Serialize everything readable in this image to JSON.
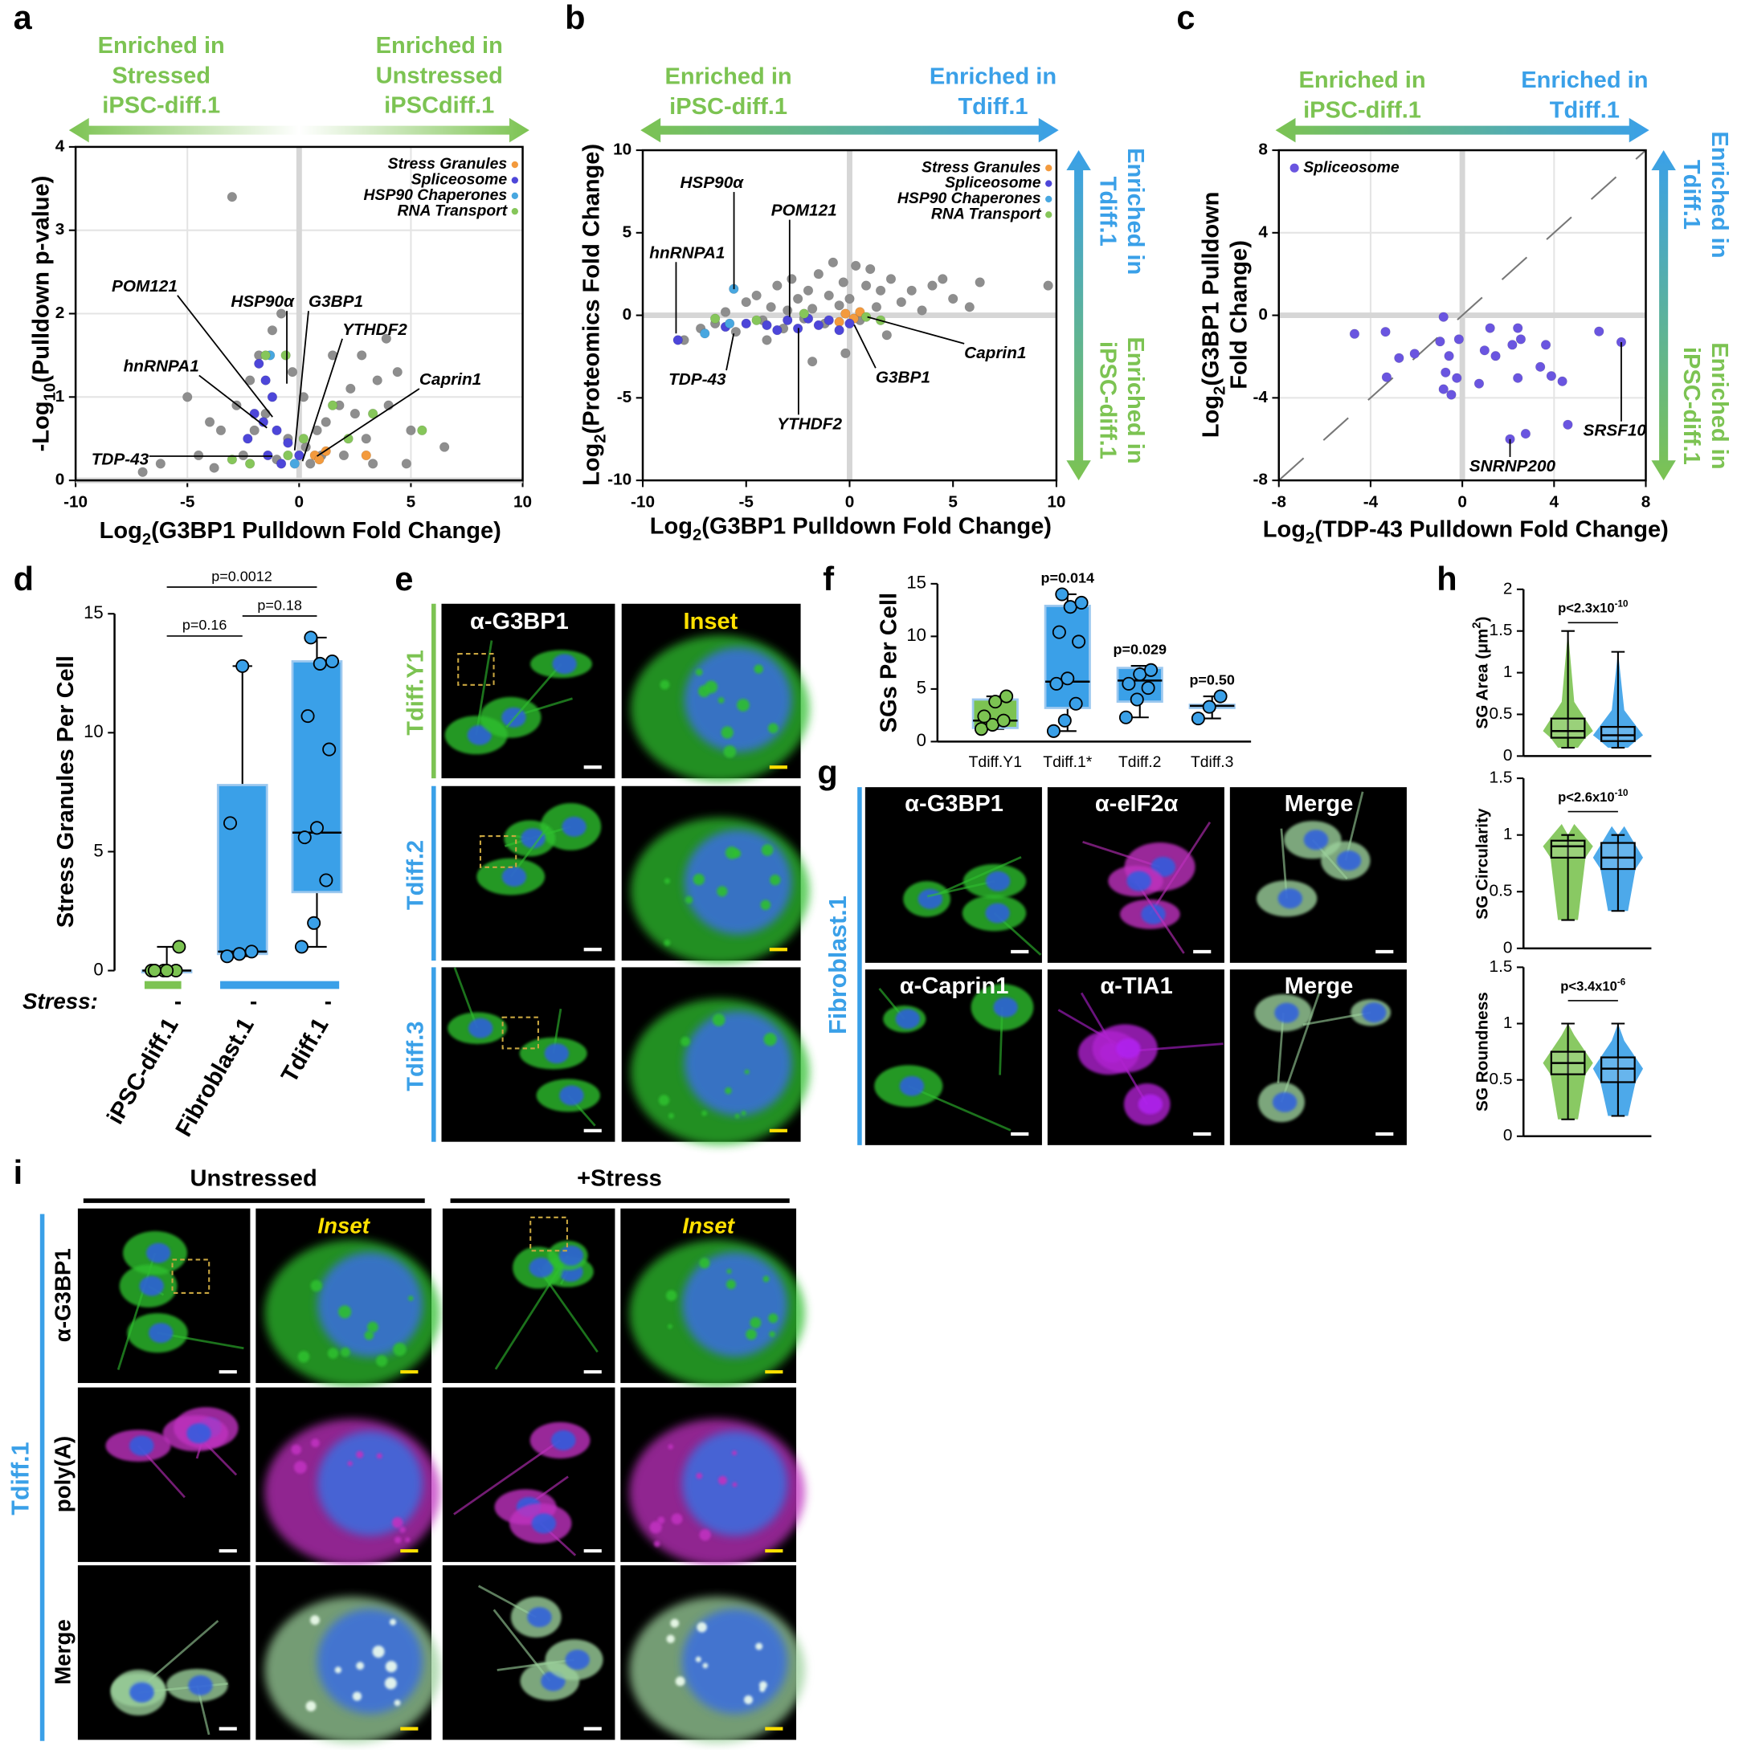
{
  "chart_data": [
    {
      "panel": "a",
      "type": "scatter",
      "xlabel": [
        [
          "Log",
          "2",
          "(G3BP1 Pulldown Fold Change)"
        ]
      ],
      "ylabel": [
        [
          "-Log",
          "10",
          "(Pulldown p-value)"
        ]
      ],
      "xlim": [
        -10,
        10
      ],
      "ylim": [
        0,
        4
      ],
      "xticks": [
        -10,
        -5,
        0,
        5,
        10
      ],
      "yticks": [
        0,
        1,
        2,
        3,
        4
      ],
      "grid": true,
      "zero_lines": true,
      "legend": "upper right",
      "arrow_text": {
        "left": [
          "Enriched in",
          "Stressed",
          "iPSC-diff.1"
        ],
        "right": [
          "Enriched in",
          "Unstressed",
          "iPSCdiff.1"
        ]
      },
      "arrow_colors": [
        "#7cc352",
        "#ffffff",
        "#7cc352"
      ],
      "series": [
        {
          "color": "#8e8e8e",
          "x": [
            -3,
            -5,
            -4,
            -3.5,
            -2.8,
            -2.2,
            -1.8,
            -1.2,
            -0.8,
            -1.5,
            -0.5,
            0.3,
            0.8,
            1.2,
            1.8,
            2.3,
            2.8,
            3.5,
            4,
            4.4,
            3.9,
            -6.2,
            -7,
            -4.5,
            -2.5,
            -1,
            0.5,
            2,
            3,
            5,
            6.5,
            -3.8,
            1.5,
            2.5,
            -2,
            0.2,
            -0.3,
            1,
            4.8,
            3.3
          ],
          "y": [
            3.4,
            1.0,
            0.7,
            0.6,
            0.9,
            1.2,
            1.5,
            1.8,
            2.0,
            0.8,
            0.5,
            0.4,
            0.6,
            0.7,
            0.9,
            1.1,
            1.5,
            1.2,
            0.9,
            1.3,
            1.7,
            0.2,
            0.1,
            0.3,
            0.3,
            0.25,
            0.2,
            0.3,
            0.5,
            0.6,
            0.4,
            0.15,
            1.5,
            0.8,
            0.6,
            1.0,
            1.3,
            0.3,
            0.2,
            0.2
          ]
        },
        {
          "name": "Stress Granules",
          "color": "#f39a3d",
          "x": [
            0.7,
            1.2,
            0.9,
            3
          ],
          "y": [
            0.3,
            0.35,
            0.25,
            0.3
          ]
        },
        {
          "name": "Spliceosome",
          "color": "#4d46d9",
          "x": [
            -1.8,
            -1.5,
            -1.2,
            -2,
            -1,
            -0.5,
            0,
            -1.4,
            -2.3,
            -0.8,
            -1.6
          ],
          "y": [
            1.4,
            1.2,
            1.0,
            0.8,
            0.6,
            0.45,
            0.3,
            0.3,
            0.5,
            0.2,
            0.7
          ]
        },
        {
          "name": "HSP90 Chaperones",
          "color": "#48a7e0",
          "x": [
            -1.3,
            -0.2
          ],
          "y": [
            1.5,
            0.2
          ]
        },
        {
          "name": "RNA Transport",
          "color": "#86c65a",
          "x": [
            -1.5,
            -2.2,
            -0.5,
            1.5,
            2.2,
            3.3,
            5.5,
            -3,
            0.2,
            -0.6
          ],
          "y": [
            1.5,
            0.2,
            0.3,
            0.9,
            0.5,
            0.8,
            0.6,
            0.25,
            0.5,
            1.5
          ]
        }
      ],
      "annotations": [
        {
          "text": "POM121",
          "x": -1.19,
          "y": 0.76
        },
        {
          "text": "hnRNPA1",
          "x": -1.44,
          "y": 0.63
        },
        {
          "text": "HSP90α",
          "x": -0.55,
          "y": 1.16
        },
        {
          "text": "G3BP1",
          "x": -0.2,
          "y": 0.36
        },
        {
          "text": "YTHDF2",
          "x": 0.15,
          "y": 0.23
        },
        {
          "text": "Caprin1",
          "x": 0.8,
          "y": 0.29
        },
        {
          "text": "TDP-43",
          "x": -1.19,
          "y": 0.29
        }
      ]
    },
    {
      "panel": "b",
      "type": "scatter",
      "xlabel": [
        [
          "Log",
          "2",
          "(G3BP1 Pulldown Fold Change)"
        ]
      ],
      "ylabel": [
        [
          "Log",
          "2",
          "(Proteomics Fold Change)"
        ]
      ],
      "xlim": [
        -10,
        10
      ],
      "ylim": [
        -10,
        10
      ],
      "xticks": [
        -10,
        -5,
        0,
        5,
        10
      ],
      "yticks": [
        -10,
        -5,
        0,
        5,
        10
      ],
      "grid": false,
      "zero_lines": true,
      "legend": "upper right",
      "arrow_text": {
        "left": [
          "Enriched in",
          "iPSC-diff.1"
        ],
        "right": [
          "Enriched in",
          "Tdiff.1"
        ]
      },
      "arrow_colors": [
        "#7cc352",
        "#3aa0e8"
      ],
      "varrow_text": {
        "top": [
          "Enriched in",
          "Tdiff.1"
        ],
        "bottom": [
          "Enriched in",
          "iPSC-diff.1"
        ]
      },
      "varrow_colors": [
        "#3aa0e8",
        "#7cc352"
      ],
      "series": [
        {
          "color": "#8e8e8e",
          "x": [
            -8,
            -7.2,
            -6.5,
            -6,
            -5.5,
            -5,
            -4.5,
            -4.2,
            -3.8,
            -3.5,
            -3.2,
            -3,
            -2.8,
            -2.5,
            -2.2,
            -2,
            -1.8,
            -1.5,
            -1.2,
            -1,
            -0.8,
            -0.5,
            -0.3,
            0,
            0.3,
            0.5,
            0.8,
            1,
            1.3,
            1.5,
            2,
            2.5,
            3,
            3.5,
            4,
            4.5,
            5,
            5.8,
            6.3,
            9.6,
            -1.8,
            -0.2,
            1.8,
            -4
          ],
          "y": [
            -1.5,
            -0.8,
            -0.5,
            0.2,
            -1,
            0.8,
            1.2,
            -0.3,
            0.5,
            1.8,
            -0.8,
            0.3,
            2.2,
            1.0,
            -0.2,
            1.5,
            0.4,
            2.5,
            -0.5,
            1.2,
            3.2,
            0.6,
            2.0,
            1.0,
            3.0,
            -0.3,
            1.8,
            2.8,
            0.5,
            1.5,
            2.2,
            0.8,
            1.5,
            0.3,
            1.8,
            2.2,
            1.0,
            0.5,
            2.0,
            1.8,
            -2.8,
            -2.3,
            -1.2,
            -1.5
          ]
        },
        {
          "name": "Stress Granules",
          "color": "#f39a3d",
          "x": [
            -0.2,
            0.2,
            -0.5,
            0.5
          ],
          "y": [
            0.1,
            -0.2,
            -0.4,
            0.2
          ]
        },
        {
          "name": "Spliceosome",
          "color": "#4d46d9",
          "x": [
            -8.3,
            -6,
            -5,
            -4,
            -3,
            -2.5,
            -2,
            -1.5,
            -1,
            -0.5,
            0,
            -3.5
          ],
          "y": [
            -1.5,
            -0.7,
            -0.5,
            -0.6,
            -0.3,
            -0.8,
            -0.2,
            -0.6,
            -0.3,
            -0.9,
            -0.5,
            -0.9
          ]
        },
        {
          "name": "HSP90 Chaperones",
          "color": "#48a7e0",
          "x": [
            -5.6,
            -7,
            -5.8
          ],
          "y": [
            1.6,
            -1.1,
            -0.5
          ]
        },
        {
          "name": "RNA Transport",
          "color": "#86c65a",
          "x": [
            -6.5,
            -4.5,
            0.8,
            1.5,
            -2.2
          ],
          "y": [
            -0.2,
            -0.3,
            -0.1,
            -0.3,
            0.1
          ]
        }
      ],
      "annotations": [
        {
          "text": "hnRNPA1",
          "x": -8.39,
          "y": -1.1
        },
        {
          "text": "HSP90α",
          "x": -5.59,
          "y": 1.58
        },
        {
          "text": "POM121",
          "x": -2.9,
          "y": -0.1
        },
        {
          "text": "TDP-43",
          "x": -5.6,
          "y": -1.1
        },
        {
          "text": "YTHDF2",
          "x": -2.47,
          "y": -0.77
        },
        {
          "text": "G3BP1",
          "x": 0.22,
          "y": -0.57
        },
        {
          "text": "Caprin1",
          "x": 0.86,
          "y": -0.1
        }
      ]
    },
    {
      "panel": "c",
      "type": "scatter",
      "xlabel": [
        [
          "Log",
          "2",
          "(TDP-43 Pulldown Fold Change)"
        ]
      ],
      "ylabel": [
        [
          "Log",
          "2",
          "(G3BP1 Pulldown"
        ],
        [
          "Fold Change)"
        ]
      ],
      "xlim": [
        -8,
        8
      ],
      "ylim": [
        -8,
        8
      ],
      "xticks": [
        -8,
        -4,
        0,
        4,
        8
      ],
      "yticks": [
        -8,
        -4,
        0,
        4,
        8
      ],
      "grid": true,
      "zero_lines": true,
      "diagonal": true,
      "legend": "upper left",
      "arrow_text": {
        "left": [
          "Enriched in",
          "iPSC-diff.1"
        ],
        "right": [
          "Enriched in",
          "Tdiff.1"
        ]
      },
      "arrow_colors": [
        "#7cc352",
        "#3aa0e8"
      ],
      "varrow_text": {
        "top": [
          "Enriched in",
          "Tdiff.1"
        ],
        "bottom": [
          "Enriched in",
          "iPSC-diff.1"
        ]
      },
      "varrow_colors": [
        "#3aa0e8",
        "#7cc352"
      ],
      "series": [
        {
          "name": "Spliceosome",
          "color": "#6a55e0",
          "x": [
            -4.7,
            -3.35,
            -3.3,
            -2.76,
            -0.82,
            -0.58,
            -0.73,
            -0.82,
            -0.48,
            -0.15,
            -0.24,
            1.21,
            0.97,
            1.45,
            2.18,
            2.42,
            2.42,
            2.55,
            0.73,
            2.08,
            2.76,
            3.64,
            3.88,
            4.36,
            3.4,
            4.6,
            5.96,
            6.93,
            -2.08,
            -0.97
          ],
          "y": [
            -0.9,
            -0.8,
            -3.0,
            -2.07,
            -0.08,
            -1.97,
            -2.77,
            -3.58,
            -3.85,
            -1.16,
            -3.04,
            -0.62,
            -1.7,
            -1.97,
            -1.43,
            -0.62,
            -3.04,
            -1.16,
            -3.31,
            -6.0,
            -5.74,
            -1.43,
            -2.94,
            -3.2,
            -2.5,
            -5.3,
            -0.78,
            -1.3,
            -1.86,
            -1.27
          ]
        }
      ],
      "annotations": [
        {
          "text": "SRSF10",
          "x": 6.93,
          "y": -1.3
        },
        {
          "text": "SNRNP200",
          "x": 2.08,
          "y": -6.0
        }
      ]
    },
    {
      "panel": "d",
      "type": "box",
      "ylabel": [
        [
          "Stress Granules Per Cell"
        ]
      ],
      "ylim": [
        0,
        15
      ],
      "yticks": [
        0,
        5,
        10,
        15
      ],
      "categories": [
        "iPSC-diff.1",
        "Fibroblast.1",
        "Tdiff.1"
      ],
      "stress_label": "Stress:",
      "stress_marks": [
        "-",
        "-",
        "-"
      ],
      "boxes": [
        {
          "color": "#7cc352",
          "min": 0,
          "q1": 0,
          "median": 0,
          "q3": 0,
          "max": 1,
          "points": [
            0,
            0,
            0,
            0,
            0,
            1
          ]
        },
        {
          "color": "#3aa0e8",
          "min": 0.6,
          "q1": 0.7,
          "median": 0.8,
          "q3": 7.8,
          "max": 12.8,
          "points": [
            0.6,
            0.7,
            0.8,
            6.2,
            12.8
          ]
        },
        {
          "color": "#3aa0e8",
          "min": 1,
          "q1": 3.3,
          "median": 5.8,
          "q3": 13,
          "max": 14,
          "points": [
            1,
            2,
            3.8,
            5.6,
            6,
            9.3,
            10.7,
            12.9,
            13,
            14
          ]
        }
      ],
      "comparisons": [
        "p=0.0012",
        "p=0.16",
        "p=0.18"
      ]
    },
    {
      "panel": "f",
      "type": "box",
      "ylabel": [
        [
          "SGs Per Cell"
        ]
      ],
      "ylim": [
        0,
        15
      ],
      "yticks": [
        0,
        5,
        10,
        15
      ],
      "categories": [
        "Tdiff.Y1",
        "Tdiff.1*",
        "Tdiff.2",
        "Tdiff.3"
      ],
      "boxes": [
        {
          "color": "#7cc352",
          "min": 1.2,
          "q1": 1.3,
          "median": 2,
          "q3": 4,
          "max": 4.3,
          "points": [
            1.2,
            1.6,
            2,
            2.4,
            3.8,
            4.3
          ]
        },
        {
          "color": "#3aa0e8",
          "min": 1,
          "q1": 3.2,
          "median": 5.7,
          "q3": 12.9,
          "max": 14,
          "points": [
            1,
            2,
            3.6,
            5.5,
            6,
            9.5,
            10.4,
            12.8,
            13.2,
            14
          ]
        },
        {
          "color": "#3aa0e8",
          "min": 2.3,
          "q1": 3.8,
          "median": 5.8,
          "q3": 7,
          "max": 7.2,
          "points": [
            2.3,
            4,
            5.1,
            5.5,
            6.4,
            6.8
          ]
        },
        {
          "color": "#3aa0e8",
          "min": 2.2,
          "q1": 3.2,
          "median": 3.4,
          "q3": 3.5,
          "max": 4.3,
          "points": [
            2.2,
            3.3,
            4.3
          ]
        }
      ],
      "p_labels": [
        null,
        "p=0.014",
        "p=0.029",
        "p=0.50"
      ]
    },
    {
      "panel": "h",
      "type": "box",
      "ylabel": [
        [
          "SG Area (μm",
          "2",
          ")"
        ]
      ],
      "ylim": [
        0,
        2
      ],
      "yticks": [
        0,
        0.5,
        1,
        1.5,
        2
      ],
      "categories": [
        null,
        null
      ],
      "boxes": [
        {
          "color": "#7cc352",
          "min": 0.1,
          "q1": 0.22,
          "median": 0.3,
          "q3": 0.45,
          "max": 1.5
        },
        {
          "color": "#3aa0e8",
          "min": 0.1,
          "q1": 0.18,
          "median": 0.25,
          "q3": 0.35,
          "max": 1.25
        }
      ],
      "p_label": [
        [
          "p<2.3x10",
          "-10"
        ]
      ]
    },
    {
      "type": "box",
      "ylabel": [
        [
          "SG Circularity"
        ]
      ],
      "ylim": [
        0,
        1.5
      ],
      "yticks": [
        0,
        0.5,
        1,
        1.5
      ],
      "categories": [
        null,
        null
      ],
      "boxes": [
        {
          "color": "#7cc352",
          "min": 0.25,
          "q1": 0.8,
          "median": 0.9,
          "q3": 0.95,
          "max": 1
        },
        {
          "color": "#3aa0e8",
          "min": 0.33,
          "q1": 0.7,
          "median": 0.8,
          "q3": 0.93,
          "max": 1
        }
      ],
      "p_label": [
        [
          "p<2.6x10",
          "-10"
        ]
      ]
    },
    {
      "type": "box",
      "ylabel": [
        [
          "SG Roundness"
        ]
      ],
      "ylim": [
        0,
        1.5
      ],
      "yticks": [
        0,
        0.5,
        1,
        1.5
      ],
      "categories": [
        null,
        null
      ],
      "boxes": [
        {
          "color": "#7cc352",
          "min": 0.15,
          "q1": 0.55,
          "median": 0.65,
          "q3": 0.75,
          "max": 1
        },
        {
          "color": "#3aa0e8",
          "min": 0.18,
          "q1": 0.48,
          "median": 0.6,
          "q3": 0.7,
          "max": 1
        }
      ],
      "p_label": [
        [
          "p<3.4x10",
          "-6"
        ]
      ]
    }
  ],
  "image_panels": [
    {
      "panel": "e",
      "columns": [
        "α-G3BP1",
        "Inset"
      ],
      "rows": [
        "Tdiff.Y1",
        "Tdiff.2",
        "Tdiff.3"
      ]
    },
    {
      "panel": "g",
      "side": "Fibroblast.1",
      "tiles": [
        [
          "α-G3BP1",
          "α-eIF2α",
          "Merge"
        ],
        [
          "α-Caprin1",
          "α-TIA1",
          "Merge"
        ]
      ]
    },
    {
      "panel": "i",
      "groups": [
        "Unstressed",
        "+Stress"
      ],
      "insets": [
        "Inset",
        "Inset"
      ],
      "rows": [
        "α-G3BP1",
        "poly(A)",
        "Merge"
      ],
      "side": "Tdiff.1"
    }
  ]
}
